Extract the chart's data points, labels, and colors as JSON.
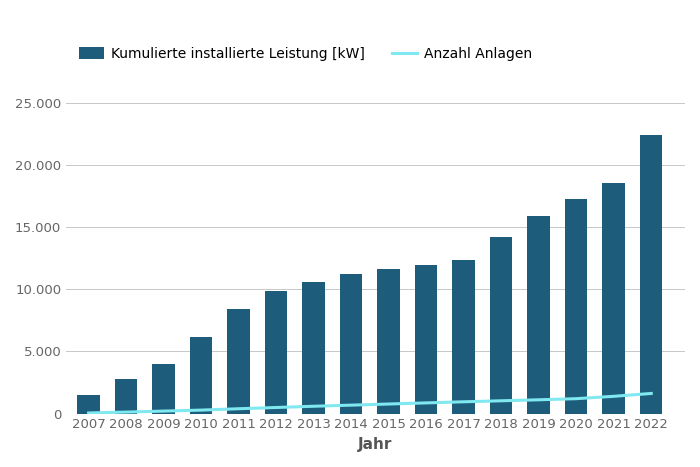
{
  "years": [
    2007,
    2008,
    2009,
    2010,
    2011,
    2012,
    2013,
    2014,
    2015,
    2016,
    2017,
    2018,
    2019,
    2020,
    2021,
    2022
  ],
  "leistung": [
    1500,
    2800,
    4000,
    6200,
    8400,
    9900,
    10600,
    11200,
    11600,
    12000,
    12400,
    14200,
    15900,
    17300,
    18600,
    22400
  ],
  "anzahl": [
    50,
    120,
    200,
    280,
    390,
    490,
    590,
    680,
    770,
    860,
    950,
    1030,
    1110,
    1200,
    1390,
    1620
  ],
  "bar_color": "#1d5c7a",
  "line_color": "#7fe8f0",
  "bar_label": "Kumulierte installierte Leistung [kW]",
  "line_label": "Anzahl Anlagen",
  "xlabel": "Jahr",
  "ylim_left": [
    0,
    27000
  ],
  "ylim_right": [
    0,
    27000
  ],
  "yticks_left": [
    0,
    5000,
    10000,
    15000,
    20000,
    25000
  ],
  "ytick_labels_left": [
    "0",
    "5.000",
    "10.000",
    "15.000",
    "20.000",
    "25.000"
  ],
  "background_color": "#ffffff",
  "grid_color": "#c8c8c8",
  "axis_fontsize": 10,
  "tick_fontsize": 9.5,
  "xlabel_fontsize": 11
}
